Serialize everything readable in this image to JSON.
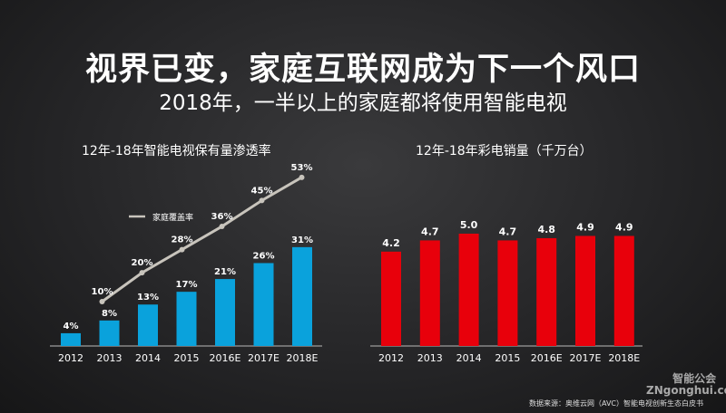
{
  "title": "视界已变，家庭互联网成为下一个风口",
  "subtitle": "2018年，一半以上的家庭都将使用智能电视",
  "source": "数据来源：奥维云网（AVC）智能电视创新生态白皮书",
  "watermark": {
    "logo": "智能公会",
    "url": "ZNgonghui.com"
  },
  "chart_data": [
    {
      "type": "bar+line",
      "title": "12年-18年智能电视保有量渗透率",
      "categories": [
        "2012",
        "2013",
        "2014",
        "2015",
        "2016E",
        "2017E",
        "2018E"
      ],
      "series": [
        {
          "type": "bar",
          "values": [
            4,
            8,
            13,
            17,
            21,
            26,
            31
          ],
          "labels": [
            "4%",
            "8%",
            "13%",
            "17%",
            "21%",
            "26%",
            "31%"
          ],
          "color": "#0aa2dc"
        },
        {
          "type": "line",
          "name": "家庭覆盖率",
          "values": [
            null,
            10,
            20,
            28,
            36,
            45,
            53
          ],
          "labels": [
            "",
            "10%",
            "20%",
            "28%",
            "36%",
            "45%",
            "53%"
          ],
          "color": "#c8c4bc"
        }
      ],
      "legend": "top-left"
    },
    {
      "type": "bar",
      "title": "12年-18年彩电销量（千万台）",
      "categories": [
        "2012",
        "2013",
        "2014",
        "2015",
        "2016E",
        "2017E",
        "2018E"
      ],
      "values": [
        4.2,
        4.7,
        5.0,
        4.7,
        4.8,
        4.9,
        4.9
      ],
      "labels": [
        "4.2",
        "4.7",
        "5.0",
        "4.7",
        "4.8",
        "4.9",
        "4.9"
      ],
      "color": "#e8000b"
    }
  ]
}
